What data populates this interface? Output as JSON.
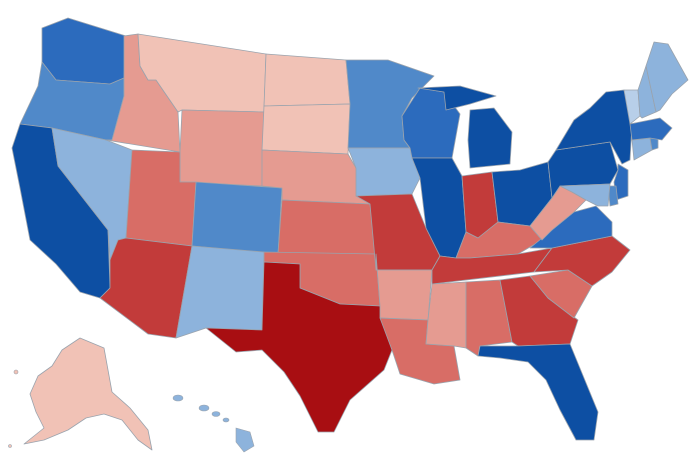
{
  "map": {
    "type": "choropleth",
    "region": "United States",
    "legend": "none",
    "palette": {
      "dark_blue": "#0d4fa3",
      "blue": "#2c6bbd",
      "mid_blue": "#5089c9",
      "light_blue": "#8db3dc",
      "pale_blue": "#b8cfe9",
      "dark_red": "#a80e12",
      "red": "#c23b3a",
      "mid_red": "#d86d66",
      "light_red": "#e59b91",
      "pale_red": "#f1c2b6"
    },
    "states": {
      "WA": "blue",
      "OR": "mid_blue",
      "CA": "dark_blue",
      "NV": "light_blue",
      "ID": "light_red",
      "MT": "pale_red",
      "WY": "light_red",
      "UT": "mid_red",
      "AZ": "red",
      "CO": "mid_blue",
      "NM": "light_blue",
      "ND": "pale_red",
      "SD": "pale_red",
      "NE": "light_red",
      "KS": "mid_red",
      "OK": "mid_red",
      "TX": "dark_red",
      "MN": "mid_blue",
      "IA": "light_blue",
      "MO": "red",
      "AR": "light_red",
      "LA": "mid_red",
      "WI": "blue",
      "IL": "dark_blue",
      "MI": "dark_blue",
      "IN": "red",
      "OH": "dark_blue",
      "KY": "mid_red",
      "TN": "red",
      "MS": "light_red",
      "AL": "mid_red",
      "GA": "red",
      "FL": "dark_blue",
      "SC": "mid_red",
      "NC": "red",
      "VA": "blue",
      "WV": "light_red",
      "PA": "dark_blue",
      "NY": "dark_blue",
      "NJ": "blue",
      "DE": "mid_blue",
      "MD": "light_blue",
      "CT": "light_blue",
      "RI": "mid_blue",
      "MA": "blue",
      "VT": "pale_blue",
      "NH": "light_blue",
      "ME": "light_blue",
      "AK": "pale_red",
      "HI": "light_blue"
    }
  }
}
